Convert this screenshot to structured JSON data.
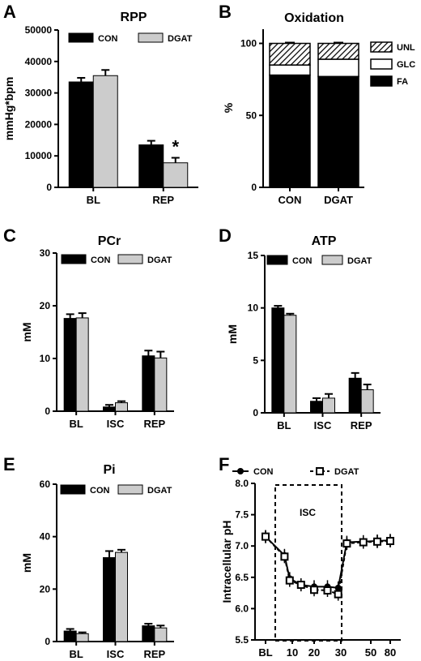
{
  "colors": {
    "CON": "#000000",
    "DGAT": "#cccccc",
    "GLC": "#ffffff",
    "frame": "#000000"
  },
  "chart_data": [
    {
      "panel": "A",
      "type": "bar",
      "title": "RPP",
      "ylabel": "mmHg*bpm",
      "categories": [
        "BL",
        "REP"
      ],
      "ylim": [
        0,
        50000
      ],
      "yticks": [
        0,
        10000,
        20000,
        30000,
        40000,
        50000
      ],
      "legend_position": "top",
      "series": [
        {
          "name": "CON",
          "values": [
            33500,
            13500
          ],
          "errors": [
            1300,
            1300
          ]
        },
        {
          "name": "DGAT",
          "values": [
            35500,
            7800
          ],
          "errors": [
            1800,
            1600
          ]
        }
      ],
      "annotations": [
        {
          "text": "*",
          "category": "REP",
          "series": "DGAT"
        }
      ]
    },
    {
      "panel": "B",
      "type": "bar",
      "stacked": true,
      "title": "Oxidation",
      "ylabel": "%",
      "categories": [
        "CON",
        "DGAT"
      ],
      "ylim": [
        0,
        100
      ],
      "yticks": [
        0,
        50,
        100
      ],
      "legend_position": "right",
      "series": [
        {
          "name": "FA",
          "values": [
            78,
            77
          ],
          "pattern": "solid"
        },
        {
          "name": "GLC",
          "values": [
            7,
            12
          ],
          "pattern": "white"
        },
        {
          "name": "UNL",
          "values": [
            15,
            11
          ],
          "pattern": "hatched"
        }
      ]
    },
    {
      "panel": "C",
      "type": "bar",
      "title": "PCr",
      "ylabel": "mM",
      "categories": [
        "BL",
        "ISC",
        "REP"
      ],
      "ylim": [
        0,
        30
      ],
      "yticks": [
        0,
        10,
        20,
        30
      ],
      "legend_position": "top",
      "series": [
        {
          "name": "CON",
          "values": [
            17.6,
            0.8,
            10.5
          ],
          "errors": [
            0.8,
            0.4,
            1.0
          ]
        },
        {
          "name": "DGAT",
          "values": [
            17.7,
            1.6,
            10.1
          ],
          "errors": [
            0.9,
            0.3,
            1.2
          ]
        }
      ]
    },
    {
      "panel": "D",
      "type": "bar",
      "title": "ATP",
      "ylabel": "mM",
      "categories": [
        "BL",
        "ISC",
        "REP"
      ],
      "ylim": [
        0,
        15
      ],
      "yticks": [
        0,
        5,
        10,
        15
      ],
      "legend_position": "top",
      "series": [
        {
          "name": "CON",
          "values": [
            10.0,
            1.1,
            3.3
          ],
          "errors": [
            0.2,
            0.3,
            0.5
          ]
        },
        {
          "name": "DGAT",
          "values": [
            9.3,
            1.4,
            2.2
          ],
          "errors": [
            0.15,
            0.4,
            0.5
          ]
        }
      ]
    },
    {
      "panel": "E",
      "type": "bar",
      "title": "Pi",
      "ylabel": "mM",
      "categories": [
        "BL",
        "ISC",
        "REP"
      ],
      "ylim": [
        0,
        60
      ],
      "yticks": [
        0,
        20,
        40,
        60
      ],
      "legend_position": "top",
      "series": [
        {
          "name": "CON",
          "values": [
            4.0,
            32.0,
            6.0
          ],
          "errors": [
            0.8,
            2.5,
            0.8
          ]
        },
        {
          "name": "DGAT",
          "values": [
            3.0,
            34.0,
            5.2
          ],
          "errors": [
            0.5,
            1.0,
            0.9
          ]
        }
      ]
    },
    {
      "panel": "F",
      "type": "line",
      "title": "",
      "ylabel": "Intracellular pH",
      "x_tick_labels": [
        "BL",
        "10",
        "20",
        "30",
        "50",
        "80"
      ],
      "ylim": [
        5.5,
        8.0
      ],
      "yticks": [
        "5.5",
        "6.0",
        "6.5",
        "7.0",
        "7.5",
        "8.0"
      ],
      "legend_position": "top",
      "annotations": [
        {
          "text": "ISC",
          "type": "dashed-box"
        }
      ],
      "series": [
        {
          "name": "CON",
          "marker": "circle",
          "line": "solid",
          "points": [
            [
              "BL",
              7.15
            ],
            [
              4,
              6.85
            ],
            [
              8,
              6.48
            ],
            [
              14,
              6.38
            ],
            [
              20,
              6.35
            ],
            [
              25,
              6.35
            ],
            [
              29,
              6.33
            ],
            [
              34,
              7.06
            ],
            [
              45,
              7.07
            ],
            [
              60,
              7.08
            ],
            [
              80,
              7.09
            ]
          ]
        },
        {
          "name": "DGAT",
          "marker": "open-square",
          "line": "dashed",
          "points": [
            [
              "BL",
              7.15
            ],
            [
              4,
              6.83
            ],
            [
              8,
              6.45
            ],
            [
              14,
              6.38
            ],
            [
              20,
              6.3
            ],
            [
              25,
              6.29
            ],
            [
              29,
              6.23
            ],
            [
              34,
              7.04
            ],
            [
              45,
              7.06
            ],
            [
              60,
              7.07
            ],
            [
              80,
              7.08
            ]
          ]
        }
      ]
    }
  ]
}
